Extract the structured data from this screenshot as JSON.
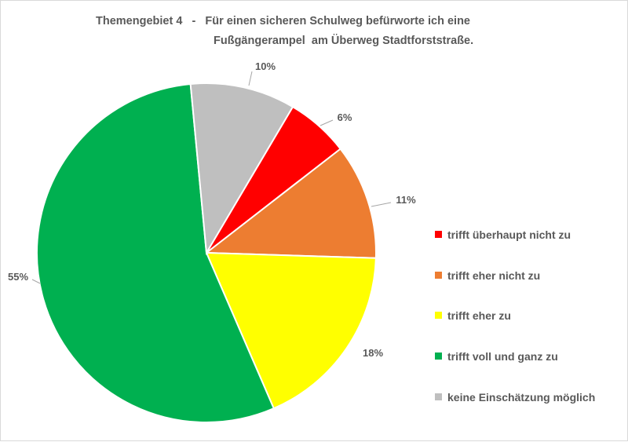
{
  "chart_data": {
    "type": "pie",
    "title_line1": "Themengebiet 4   -   Für einen sicheren Schulweg befürworte ich eine",
    "title_line2": "Fußgängerampel  am Überweg Stadtforststraße.",
    "slices": [
      {
        "label": "trifft überhaupt nicht zu",
        "value": 6,
        "display": "6%",
        "color": "#ff0000"
      },
      {
        "label": "trifft eher nicht zu",
        "value": 11,
        "display": "11%",
        "color": "#ed7d31"
      },
      {
        "label": "trifft eher zu",
        "value": 18,
        "display": "18%",
        "color": "#ffff00"
      },
      {
        "label": "trifft voll und ganz zu",
        "value": 55,
        "display": "55%",
        "color": "#00b050"
      },
      {
        "label": "keine Einschätzung möglich",
        "value": 10,
        "display": "10%",
        "color": "#bfbfbf"
      }
    ],
    "legend_position": "right"
  }
}
